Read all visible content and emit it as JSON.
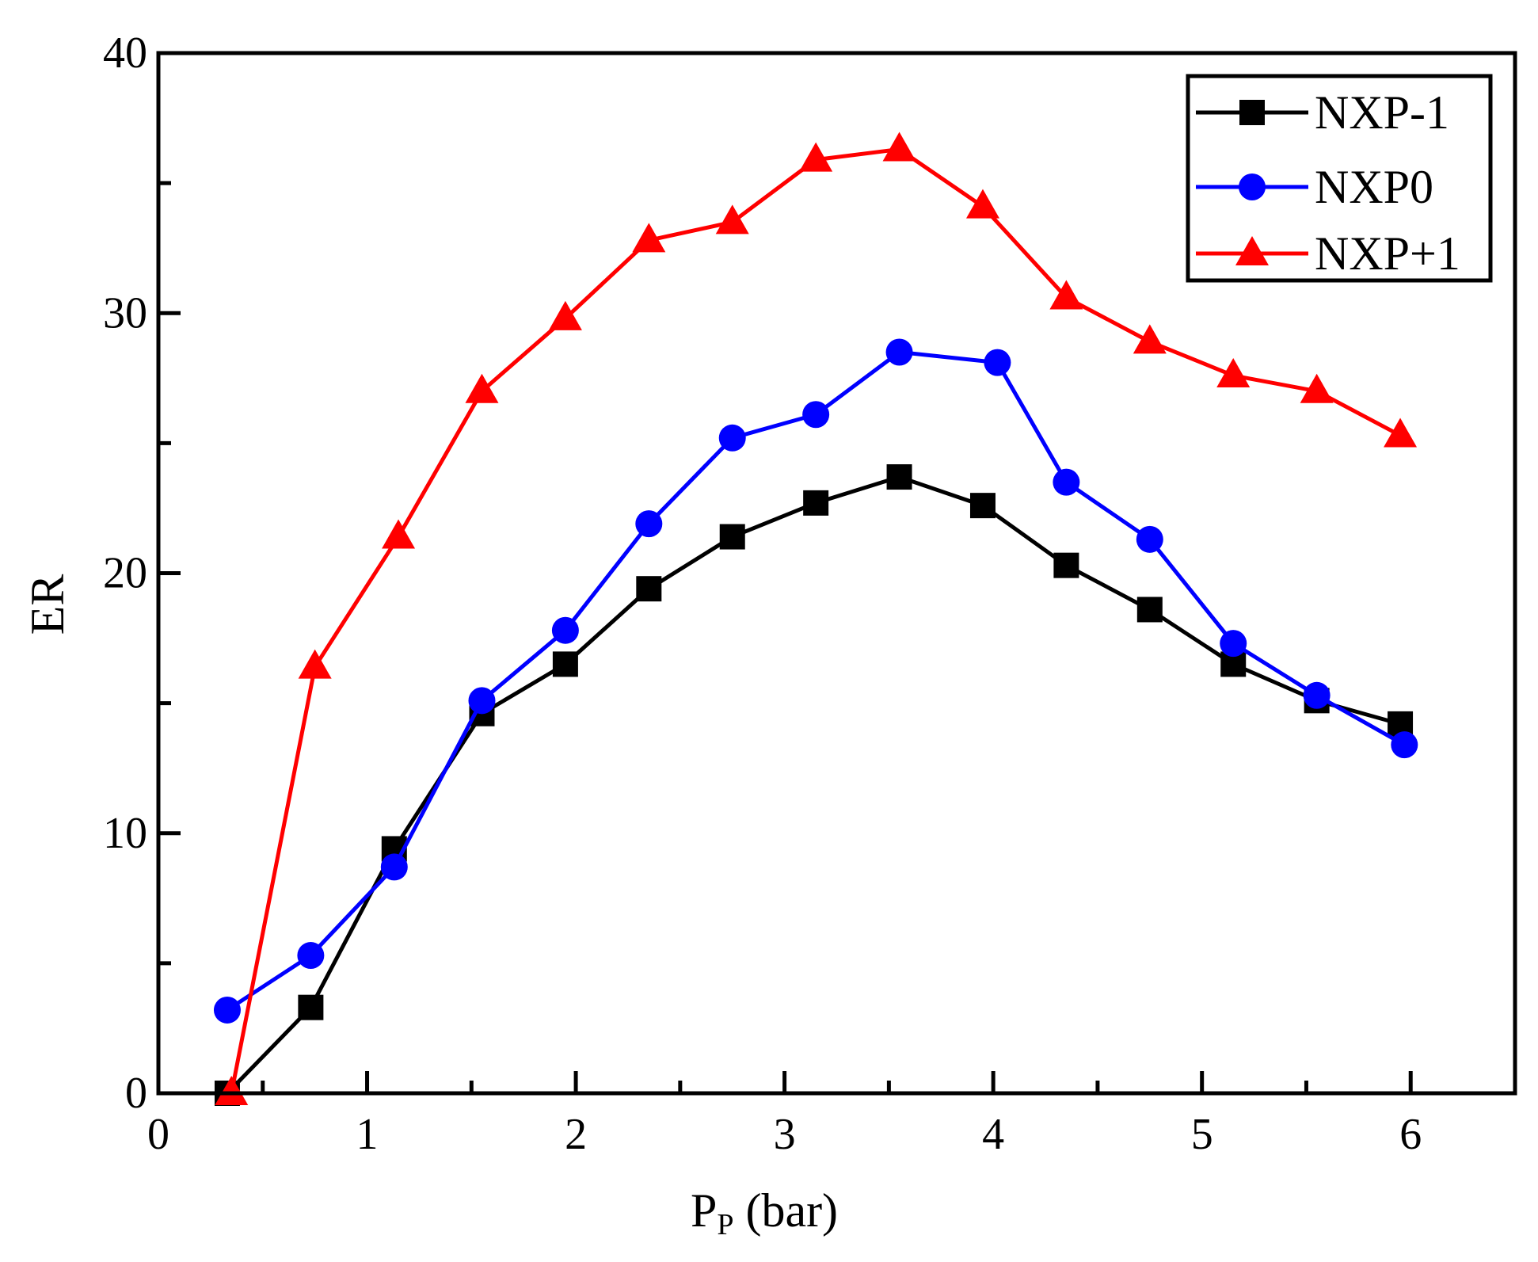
{
  "chart_data": {
    "type": "line",
    "title": "",
    "xlabel": {
      "main": "P",
      "subscript": "P",
      "suffix": " (bar)"
    },
    "ylabel": "ER",
    "xlim": [
      0,
      6.5
    ],
    "ylim": [
      0,
      40
    ],
    "xticks": [
      0,
      1,
      2,
      3,
      4,
      5,
      6
    ],
    "yticks": [
      0,
      10,
      20,
      30,
      40
    ],
    "xtick_labels": [
      "0",
      "1",
      "2",
      "3",
      "4",
      "5",
      "6"
    ],
    "ytick_labels": [
      "0",
      "10",
      "20",
      "30",
      "40"
    ],
    "grid": false,
    "legend_position": "top-right",
    "series": [
      {
        "name": "NXP-1",
        "color": "#000000",
        "marker": "square",
        "x": [
          0.33,
          0.73,
          1.13,
          1.55,
          1.95,
          2.35,
          2.75,
          3.15,
          3.55,
          3.95,
          4.35,
          4.75,
          5.15,
          5.55,
          5.95
        ],
        "y": [
          0.0,
          3.3,
          9.4,
          14.6,
          16.5,
          19.4,
          21.4,
          22.7,
          23.7,
          22.6,
          20.3,
          18.6,
          16.5,
          15.1,
          14.2
        ]
      },
      {
        "name": "NXP0",
        "color": "#0000ff",
        "marker": "circle",
        "x": [
          0.33,
          0.73,
          1.13,
          1.55,
          1.95,
          2.35,
          2.75,
          3.15,
          3.55,
          4.02,
          4.35,
          4.75,
          5.15,
          5.55,
          5.97
        ],
        "y": [
          3.2,
          5.3,
          8.7,
          15.1,
          17.8,
          21.9,
          25.2,
          26.1,
          28.5,
          28.1,
          23.5,
          21.3,
          17.3,
          15.3,
          13.4
        ]
      },
      {
        "name": "NXP+1",
        "color": "#ff0000",
        "marker": "triangle",
        "x": [
          0.35,
          0.75,
          1.15,
          1.55,
          1.95,
          2.35,
          2.75,
          3.15,
          3.55,
          3.95,
          4.35,
          4.75,
          5.15,
          5.55,
          5.95
        ],
        "y": [
          0.0,
          16.4,
          21.4,
          27.0,
          29.8,
          32.8,
          33.5,
          35.9,
          36.3,
          34.1,
          30.6,
          28.9,
          27.6,
          27.0,
          25.3
        ]
      }
    ]
  }
}
